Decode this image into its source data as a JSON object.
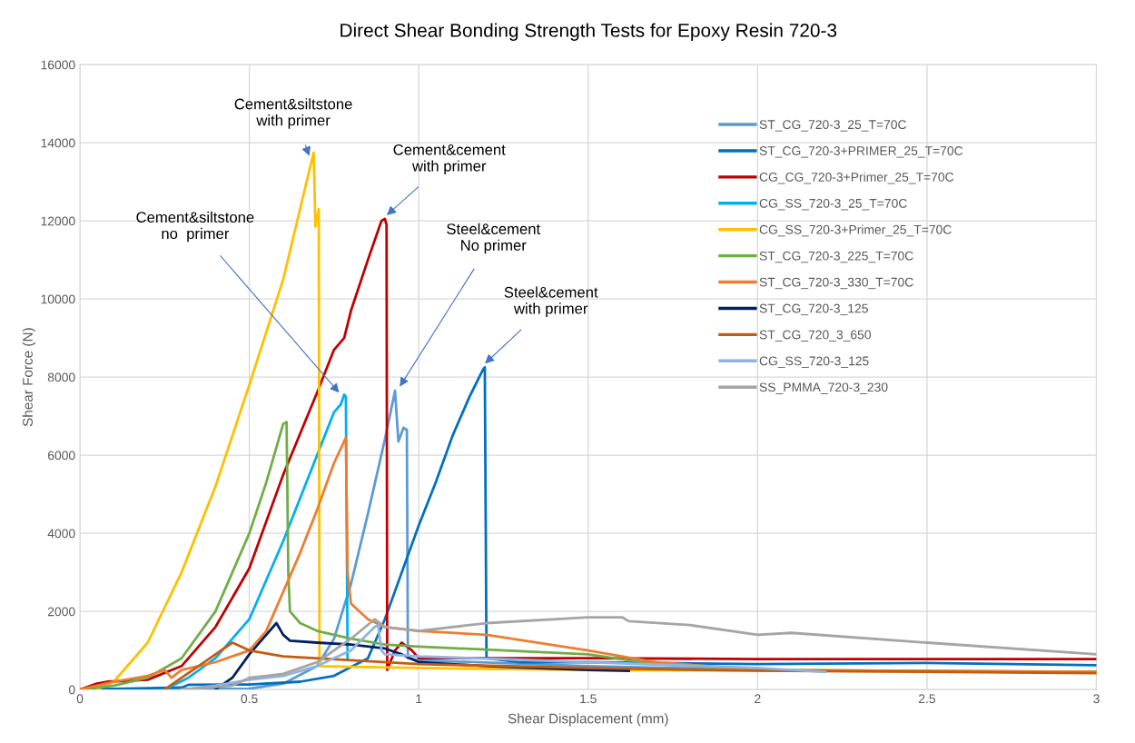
{
  "chart_data": {
    "type": "line",
    "title": "Direct Shear Bonding Strength Tests for Epoxy Resin 720-3",
    "xlabel": "Shear Displacement (mm)",
    "ylabel": "Shear Force (N)",
    "xlim": [
      0,
      3
    ],
    "xticks": [
      0,
      0.5,
      1,
      1.5,
      2,
      2.5,
      3
    ],
    "ylim": [
      0,
      16000
    ],
    "yticks": [
      0,
      2000,
      4000,
      6000,
      8000,
      10000,
      12000,
      14000,
      16000
    ],
    "grid": true,
    "legend": "top right",
    "marker": "none",
    "line_style": "solid",
    "series": [
      {
        "name": "ST_CG_720-3_25_T=70C",
        "color": "#5b9bd5",
        "x": [
          0,
          0.5,
          0.6,
          0.7,
          0.75,
          0.8,
          0.85,
          0.9,
          0.93,
          0.94,
          0.955,
          0.965,
          0.968,
          1.0,
          1.5,
          2.0
        ],
        "values": [
          0,
          20,
          150,
          600,
          1300,
          2700,
          4500,
          6400,
          7650,
          6350,
          6700,
          6650,
          800,
          750,
          600,
          500
        ]
      },
      {
        "name": "ST_CG_720-3+PRIMER_25_T=70C",
        "color": "#0070c0",
        "x": [
          0,
          0.3,
          0.32,
          0.5,
          0.65,
          0.75,
          0.85,
          0.9,
          0.95,
          1.0,
          1.05,
          1.1,
          1.15,
          1.19,
          1.195,
          1.2,
          1.3,
          1.5,
          2.0,
          2.5,
          3.0
        ],
        "values": [
          0,
          50,
          120,
          130,
          200,
          350,
          800,
          1800,
          3000,
          4200,
          5300,
          6500,
          7500,
          8200,
          8250,
          800,
          700,
          700,
          650,
          680,
          620
        ]
      },
      {
        "name": "CG_CG_720-3+Primer_25_T=70C",
        "color": "#c00000",
        "x": [
          0,
          0.05,
          0.08,
          0.2,
          0.3,
          0.4,
          0.5,
          0.6,
          0.7,
          0.75,
          0.78,
          0.8,
          0.85,
          0.89,
          0.9,
          0.905,
          0.907,
          0.93,
          0.95,
          0.98,
          1.0,
          1.5,
          2.0,
          3.0
        ],
        "values": [
          0,
          150,
          200,
          250,
          600,
          1600,
          3100,
          5500,
          7600,
          8700,
          9000,
          9700,
          11000,
          12000,
          12050,
          11900,
          500,
          1000,
          1200,
          1000,
          800,
          800,
          780,
          780
        ]
      },
      {
        "name": "CG_SS_720-3_25_T=70C",
        "color": "#00b0f0",
        "x": [
          0.25,
          0.32,
          0.4,
          0.5,
          0.6,
          0.7,
          0.75,
          0.77,
          0.78,
          0.785,
          0.79
        ],
        "values": [
          0,
          300,
          800,
          1800,
          3800,
          6000,
          7100,
          7300,
          7550,
          7500,
          800
        ]
      },
      {
        "name": "CG_SS_720-3+Primer_25_T=70C",
        "color": "#ffc000",
        "x": [
          0.05,
          0.1,
          0.2,
          0.3,
          0.4,
          0.5,
          0.6,
          0.68,
          0.69,
          0.695,
          0.705,
          0.707,
          0.8,
          1.0,
          1.5,
          2.0,
          3.0
        ],
        "values": [
          0,
          200,
          1200,
          3000,
          5200,
          7800,
          10500,
          13400,
          13750,
          11850,
          12300,
          600,
          580,
          550,
          500,
          480,
          450
        ]
      },
      {
        "name": "ST_CG_720-3_225_T=70C",
        "color": "#70ad47",
        "x": [
          0,
          0.1,
          0.2,
          0.3,
          0.4,
          0.5,
          0.55,
          0.6,
          0.61,
          0.615,
          0.62,
          0.65,
          0.7,
          0.8,
          0.9,
          1.0,
          1.5,
          1.7,
          2.0,
          3.0
        ],
        "values": [
          0,
          100,
          300,
          800,
          2000,
          4000,
          5300,
          6800,
          6850,
          3000,
          2000,
          1700,
          1500,
          1300,
          1150,
          1100,
          900,
          650,
          500,
          450
        ]
      },
      {
        "name": "ST_CG_720-3_330_T=70C",
        "color": "#ed7d31",
        "x": [
          0,
          0.1,
          0.2,
          0.25,
          0.27,
          0.3,
          0.4,
          0.5,
          0.55,
          0.6,
          0.65,
          0.7,
          0.75,
          0.785,
          0.79,
          0.8,
          0.85,
          0.9,
          1.0,
          1.2,
          1.5,
          1.7,
          2.0,
          3.0
        ],
        "values": [
          0,
          200,
          350,
          500,
          300,
          500,
          700,
          1000,
          1500,
          2500,
          3500,
          4600,
          5800,
          6450,
          3000,
          2200,
          1800,
          1600,
          1500,
          1400,
          1000,
          700,
          500,
          450
        ]
      },
      {
        "name": "ST_CG_720-3_125",
        "color": "#002060",
        "x": [
          0.4,
          0.45,
          0.5,
          0.55,
          0.58,
          0.6,
          0.62,
          0.7,
          0.8,
          0.9,
          0.95,
          1.0,
          1.2,
          1.5,
          1.62
        ],
        "values": [
          0,
          300,
          900,
          1400,
          1700,
          1400,
          1250,
          1200,
          1150,
          1050,
          900,
          700,
          600,
          500,
          480
        ]
      },
      {
        "name": "ST_CG_720_3_650",
        "color": "#c55a11",
        "x": [
          0.25,
          0.3,
          0.35,
          0.4,
          0.45,
          0.5,
          0.6,
          0.8,
          1.0,
          1.5,
          2.0,
          3.0
        ],
        "values": [
          0,
          300,
          600,
          900,
          1200,
          1000,
          850,
          750,
          650,
          550,
          480,
          420
        ]
      },
      {
        "name": "CG_SS_720-3_125",
        "color": "#8eb4e3",
        "x": [
          0.3,
          0.4,
          0.5,
          0.6,
          0.7,
          0.8,
          0.87,
          0.88,
          0.89,
          0.9,
          1.0,
          1.5,
          2.0,
          2.2
        ],
        "values": [
          0,
          100,
          250,
          350,
          600,
          1000,
          1600,
          1650,
          1000,
          900,
          850,
          700,
          550,
          450
        ]
      },
      {
        "name": "SS_PMMA_720-3_230",
        "color": "#a5a5a5",
        "x": [
          0.3,
          0.45,
          0.5,
          0.55,
          0.6,
          0.7,
          0.8,
          0.87,
          0.9,
          1.0,
          1.2,
          1.5,
          1.6,
          1.62,
          1.8,
          2.0,
          2.1,
          2.5,
          3.0
        ],
        "values": [
          0,
          100,
          300,
          350,
          400,
          700,
          1300,
          1800,
          1600,
          1500,
          1700,
          1850,
          1850,
          1750,
          1650,
          1400,
          1450,
          1200,
          900
        ]
      }
    ],
    "annotations": [
      {
        "text": "Cement&siltstone\nwith primer",
        "x": 0.68,
        "y": 13600
      },
      {
        "text": "Cement&cement\nwith primer",
        "x": 0.9,
        "y": 12100
      },
      {
        "text": "Cement&siltstone\nno  primer",
        "x": 0.77,
        "y": 7550
      },
      {
        "text": "Steel&cement\nNo primer",
        "x": 0.94,
        "y": 7700
      },
      {
        "text": "Steel&cement\nwith primer",
        "x": 1.19,
        "y": 8300
      }
    ]
  }
}
